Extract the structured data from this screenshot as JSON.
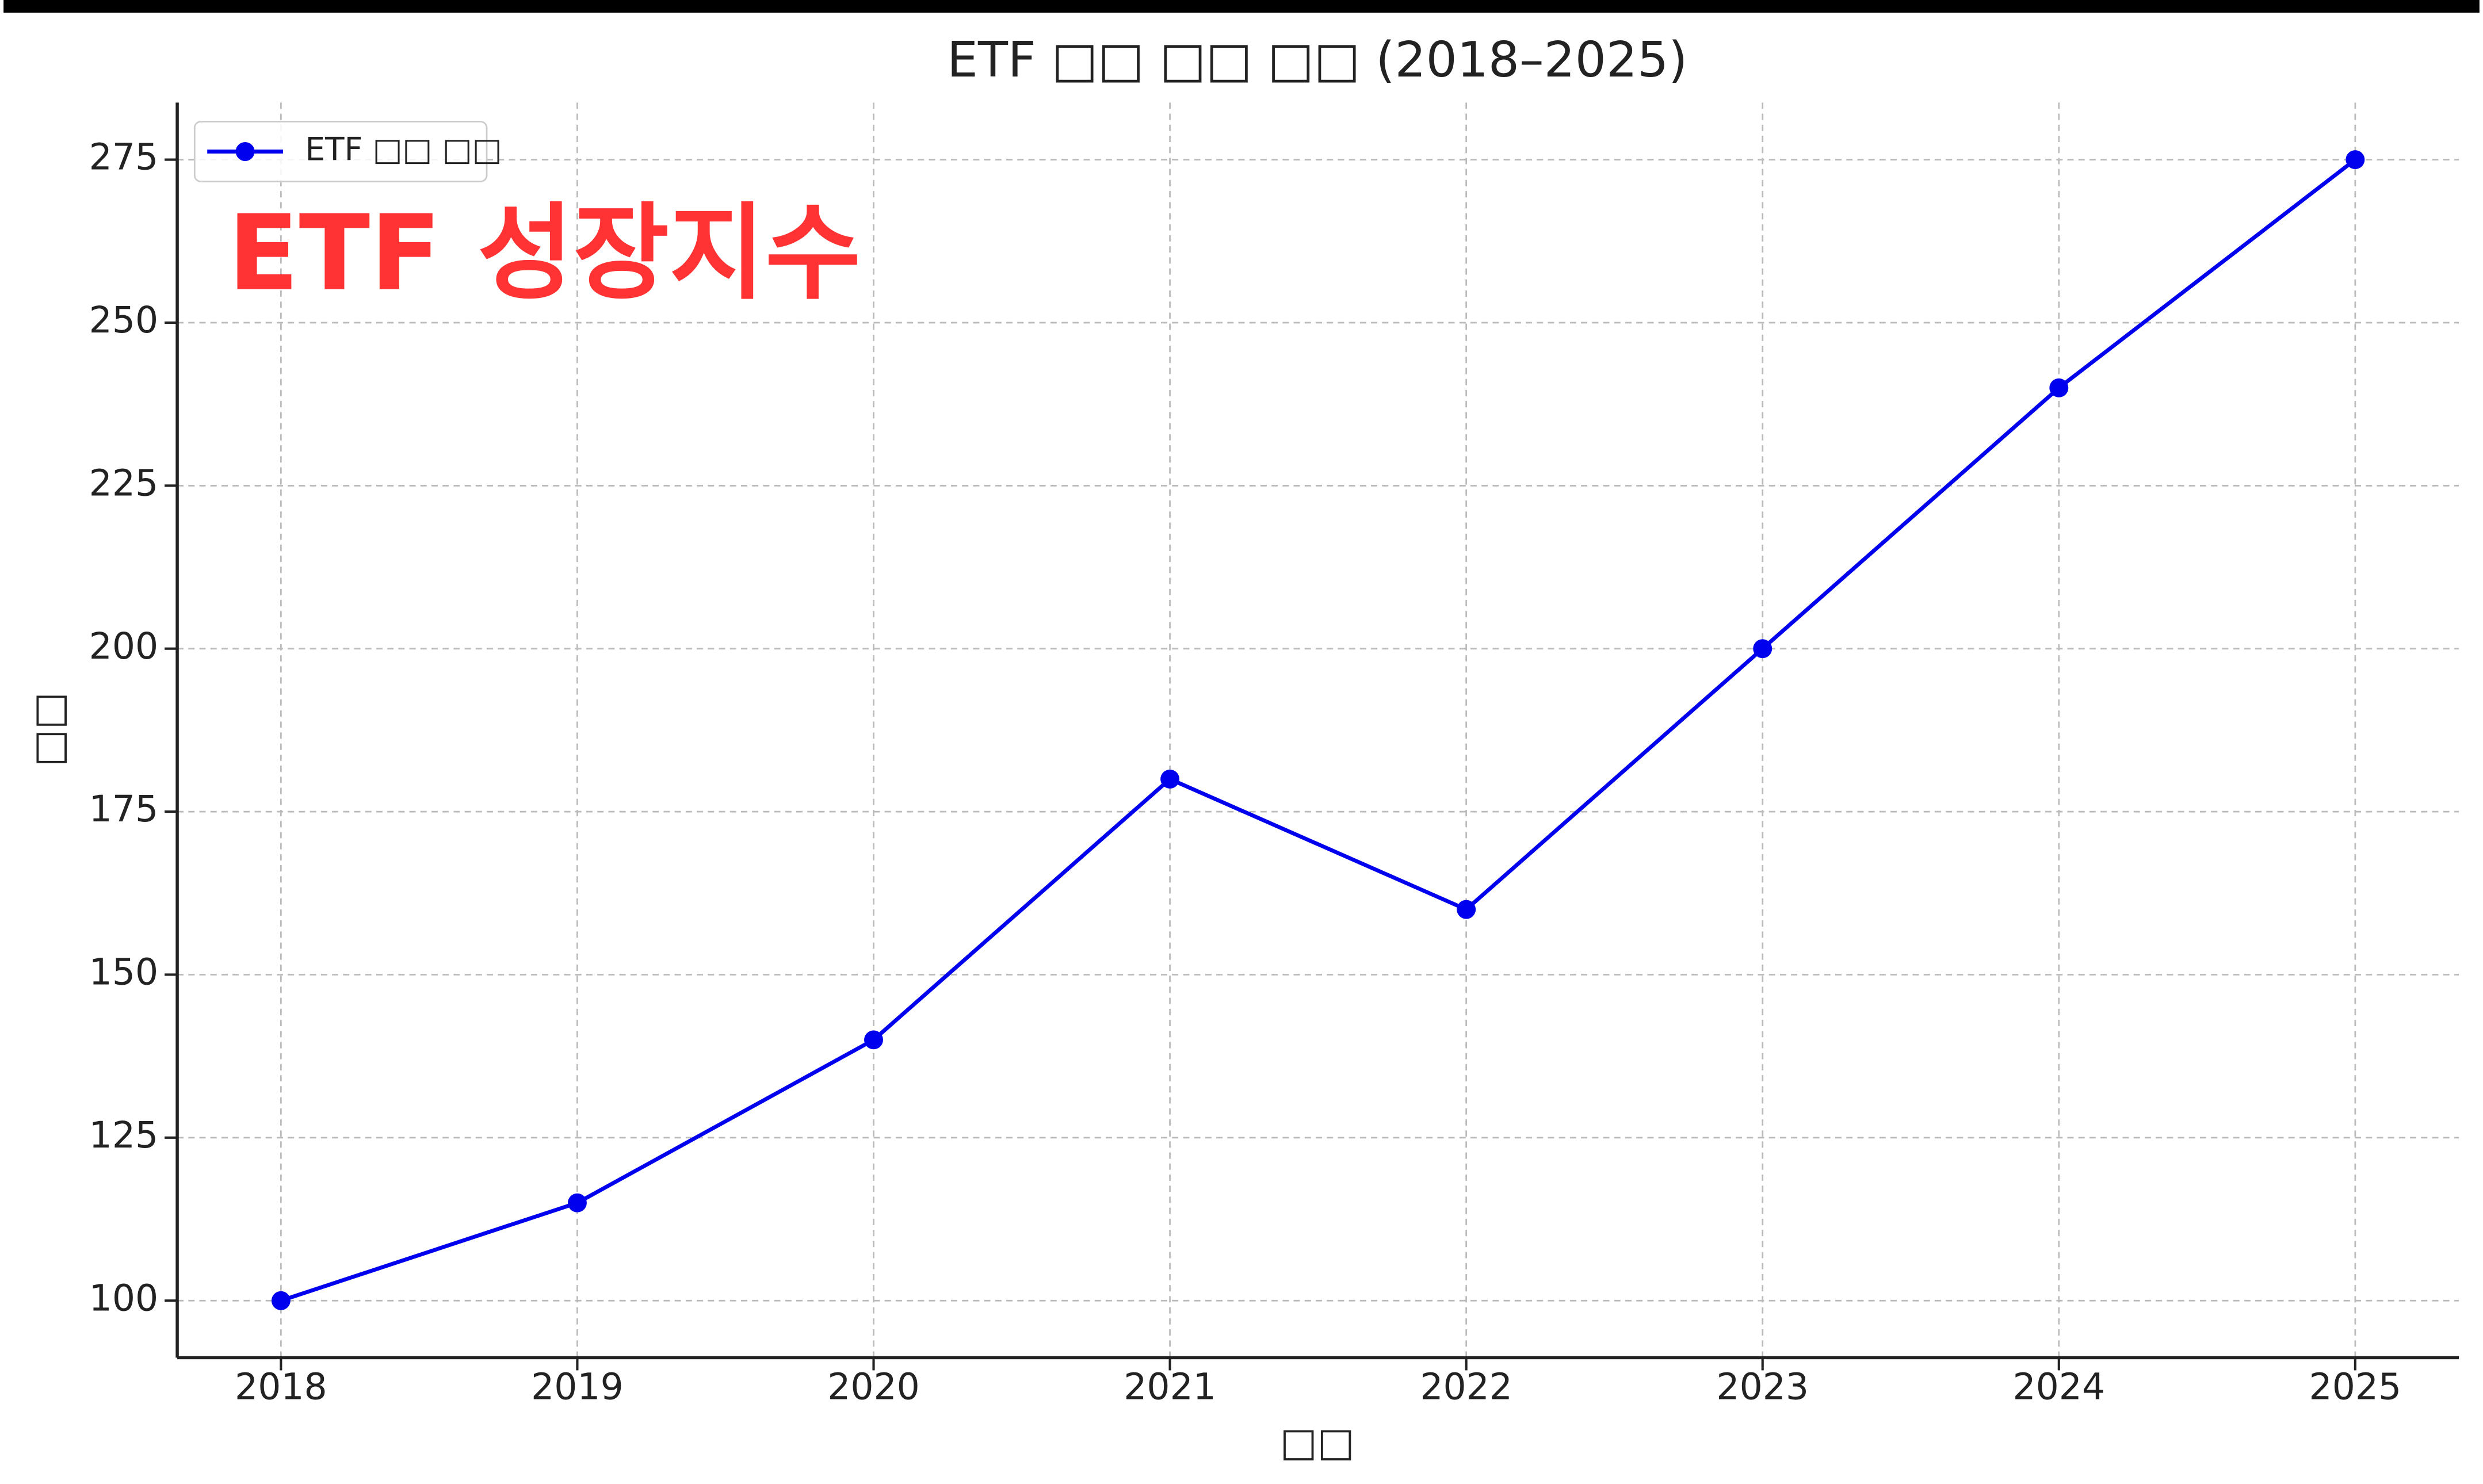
{
  "chart_data": {
    "type": "line",
    "title": "ETF □□ □□ □□ (2018–2025)",
    "x_label": "□□",
    "y_label": "□□",
    "annotation": "ETF 성장지수",
    "annotation_color": "#ff3333",
    "x": [
      2018,
      2019,
      2020,
      2021,
      2022,
      2023,
      2024,
      2025
    ],
    "series": [
      {
        "name": "ETF □□ □□",
        "color": "#0000ee",
        "values": [
          100,
          115,
          140,
          180,
          160,
          200,
          240,
          275
        ]
      }
    ],
    "xlim": [
      2017.65,
      2025.35
    ],
    "xticks": [
      2018,
      2019,
      2020,
      2021,
      2022,
      2023,
      2024,
      2025
    ],
    "ylim": [
      91.25,
      283.75
    ],
    "yticks": [
      100,
      125,
      150,
      175,
      200,
      225,
      250,
      275
    ],
    "grid": true,
    "legend": "upper-left"
  }
}
